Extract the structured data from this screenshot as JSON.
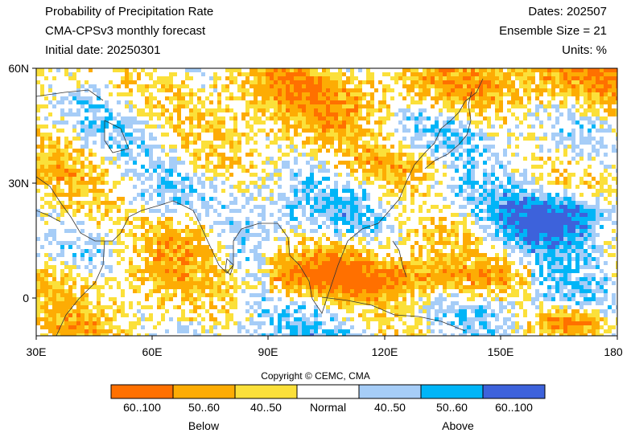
{
  "header": {
    "title": "Probability of Precipitation Rate",
    "model": "CMA-CPSv3 monthly forecast",
    "initial_date": "Initial date: 20250301",
    "dates": "Dates: 202507",
    "ensemble": "Ensemble Size = 21",
    "units": "Units: %"
  },
  "axes": {
    "lat_labels": [
      "60N",
      "30N",
      "0"
    ],
    "lon_labels": [
      "30E",
      "60E",
      "90E",
      "120E",
      "150E",
      "180"
    ]
  },
  "copyright": "Copyright © CEMC, CMA",
  "legend": {
    "bins": [
      {
        "label": "60..100",
        "color": "#ff7000"
      },
      {
        "label": "50..60",
        "color": "#fdac04"
      },
      {
        "label": "40..50",
        "color": "#fbe03a"
      },
      {
        "label": "Normal",
        "color": "#ffffff"
      },
      {
        "label": "40..50",
        "color": "#a6cdf7"
      },
      {
        "label": "50..60",
        "color": "#00b5f7"
      },
      {
        "label": "60..100",
        "color": "#3d62db"
      }
    ],
    "group_below": "Below",
    "group_above": "Above"
  }
}
